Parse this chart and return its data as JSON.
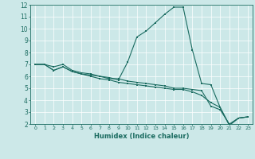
{
  "title": "",
  "xlabel": "Humidex (Indice chaleur)",
  "xlim": [
    -0.5,
    23.5
  ],
  "ylim": [
    2,
    12
  ],
  "xticks": [
    0,
    1,
    2,
    3,
    4,
    5,
    6,
    7,
    8,
    9,
    10,
    11,
    12,
    13,
    14,
    15,
    16,
    17,
    18,
    19,
    20,
    21,
    22,
    23
  ],
  "yticks": [
    2,
    3,
    4,
    5,
    6,
    7,
    8,
    9,
    10,
    11,
    12
  ],
  "bg_color": "#cce8e8",
  "grid_color": "#ffffff",
  "line_color": "#1a6b60",
  "line1_x": [
    0,
    1,
    2,
    3,
    4,
    5,
    6,
    7,
    8,
    9,
    10,
    11,
    12,
    13,
    14,
    15,
    16,
    17,
    18,
    19,
    20,
    21,
    22,
    23
  ],
  "line1_y": [
    7.0,
    7.0,
    6.8,
    7.0,
    6.5,
    6.3,
    6.2,
    6.0,
    5.8,
    5.8,
    5.6,
    5.5,
    5.4,
    5.3,
    5.2,
    5.0,
    5.0,
    4.9,
    4.8,
    3.5,
    3.2,
    2.0,
    2.5,
    2.6
  ],
  "line2_x": [
    0,
    1,
    2,
    3,
    4,
    5,
    6,
    7,
    8,
    9,
    10,
    11,
    12,
    13,
    14,
    15,
    16,
    17,
    18,
    19,
    20,
    21,
    22,
    23
  ],
  "line2_y": [
    7.0,
    7.0,
    6.5,
    6.8,
    6.4,
    6.2,
    6.1,
    6.0,
    5.9,
    5.7,
    7.2,
    9.3,
    9.8,
    10.5,
    11.2,
    11.8,
    11.8,
    8.2,
    5.4,
    5.3,
    3.4,
    1.9,
    2.5,
    2.6
  ],
  "line3_x": [
    0,
    1,
    2,
    3,
    4,
    5,
    6,
    7,
    8,
    9,
    10,
    11,
    12,
    13,
    14,
    15,
    16,
    17,
    18,
    19,
    20,
    21,
    22,
    23
  ],
  "line3_y": [
    7.0,
    7.0,
    6.5,
    6.8,
    6.4,
    6.2,
    6.0,
    5.8,
    5.7,
    5.5,
    5.4,
    5.3,
    5.2,
    5.1,
    5.0,
    4.9,
    4.9,
    4.7,
    4.4,
    3.8,
    3.4,
    1.9,
    2.5,
    2.6
  ]
}
